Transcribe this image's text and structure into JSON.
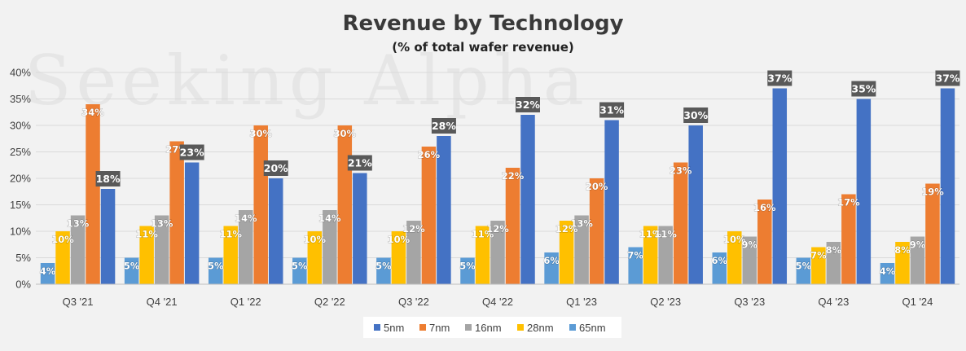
{
  "chart_data": {
    "type": "bar",
    "title": "Revenue by Technology",
    "subtitle": "(% of total wafer revenue)",
    "watermark": "Seeking Alpha",
    "categories": [
      "Q3 '21",
      "Q4 '21",
      "Q1 '22",
      "Q2 '22",
      "Q3 '22",
      "Q4 '22",
      "Q1 '23",
      "Q2 '23",
      "Q3 '23",
      "Q4 '23",
      "Q1 '24"
    ],
    "ylim": [
      0,
      40
    ],
    "yticks": [
      "0%",
      "5%",
      "10%",
      "15%",
      "20%",
      "25%",
      "30%",
      "35%",
      "40%"
    ],
    "grid": true,
    "legend_position": "bottom",
    "bar_order": [
      "65nm",
      "28nm",
      "16nm",
      "7nm",
      "5nm"
    ],
    "series": [
      {
        "name": "5nm",
        "color": "#4472c4",
        "values": [
          18,
          23,
          20,
          21,
          28,
          32,
          31,
          30,
          37,
          35,
          37
        ],
        "labels": [
          "18%",
          "23%",
          "20%",
          "21%",
          "28%",
          "32%",
          "31%",
          "30%",
          "37%",
          "35%",
          "37%"
        ]
      },
      {
        "name": "7nm",
        "color": "#ed7d31",
        "values": [
          34,
          27,
          30,
          30,
          26,
          22,
          20,
          23,
          16,
          17,
          19
        ],
        "labels": [
          "34%",
          "27%",
          "30%",
          "30%",
          "26%",
          "22%",
          "20%",
          "23%",
          "16%",
          "17%",
          "19%"
        ]
      },
      {
        "name": "16nm",
        "color": "#a5a5a5",
        "values": [
          13,
          13,
          14,
          14,
          12,
          12,
          13,
          11,
          9,
          8,
          9
        ],
        "labels": [
          "13%",
          "13%",
          "14%",
          "14%",
          "12%",
          "12%",
          "13%",
          "11%",
          "9%",
          "8%",
          "9%"
        ]
      },
      {
        "name": "28nm",
        "color": "#ffc000",
        "values": [
          10,
          11,
          11,
          10,
          10,
          11,
          12,
          11,
          10,
          7,
          8
        ],
        "labels": [
          "10%",
          "11%",
          "11%",
          "10%",
          "10%",
          "11%",
          "12%",
          "11%",
          "10%",
          "7%",
          "8%"
        ]
      },
      {
        "name": "65nm",
        "color": "#5b9bd5",
        "values": [
          4,
          5,
          5,
          5,
          5,
          5,
          6,
          7,
          6,
          5,
          4
        ],
        "labels": [
          "4%",
          "5%",
          "5%",
          "5%",
          "5%",
          "5%",
          "6%",
          "7%",
          "6%",
          "5%",
          "4%"
        ]
      }
    ]
  }
}
